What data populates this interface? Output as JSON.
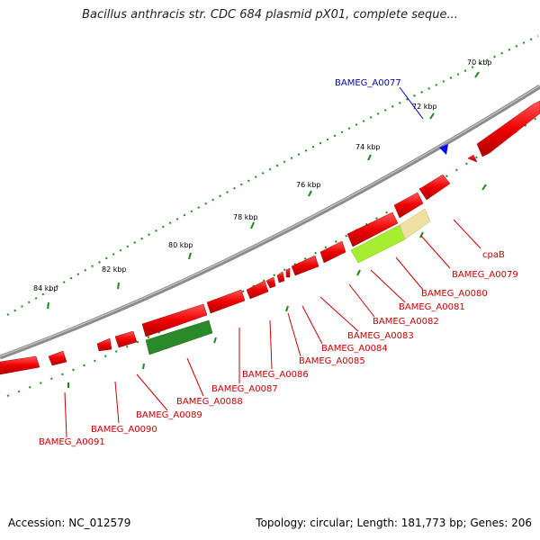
{
  "title": "Bacillus anthracis str. CDC 684 plasmid pX01, complete seque...",
  "footer": {
    "accession": "Accession: NC_012579",
    "summary": "Topology: circular; Length: 181,773 bp; Genes: 206"
  },
  "colors": {
    "backbone": "#8c8c8c",
    "cds": "#ee0000",
    "tick": "#1a8a1a",
    "label_red": "#cc0000",
    "label_blue": "#0000cc",
    "gene_dark_green": "#2a8a2a",
    "gene_light_green": "#a8ee30",
    "gene_tan": "#eee0a0",
    "gene_blue": "#0000ff"
  },
  "ruler_labels": [
    "70 kbp",
    "72 kbp",
    "74 kbp",
    "76 kbp",
    "78 kbp",
    "80 kbp",
    "82 kbp",
    "84 kbp"
  ],
  "gene_labels": [
    {
      "text": "BAMEG_A0077",
      "color": "blue"
    },
    {
      "text": "cpaB",
      "color": "red"
    },
    {
      "text": "BAMEG_A0079",
      "color": "red"
    },
    {
      "text": "BAMEG_A0080",
      "color": "red"
    },
    {
      "text": "BAMEG_A0081",
      "color": "red"
    },
    {
      "text": "BAMEG_A0082",
      "color": "red"
    },
    {
      "text": "BAMEG_A0083",
      "color": "red"
    },
    {
      "text": "BAMEG_A0084",
      "color": "red"
    },
    {
      "text": "BAMEG_A0085",
      "color": "red"
    },
    {
      "text": "BAMEG_A0086",
      "color": "red"
    },
    {
      "text": "BAMEG_A0087",
      "color": "red"
    },
    {
      "text": "BAMEG_A0088",
      "color": "red"
    },
    {
      "text": "BAMEG_A0089",
      "color": "red"
    },
    {
      "text": "BAMEG_A0090",
      "color": "red"
    },
    {
      "text": "BAMEG_A0091",
      "color": "red"
    }
  ]
}
